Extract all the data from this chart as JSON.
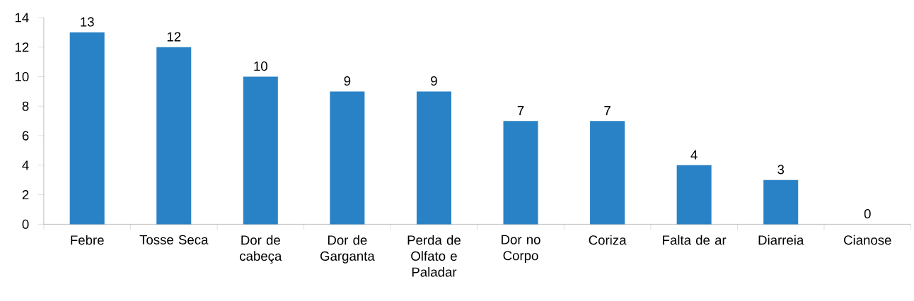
{
  "chart_data": {
    "type": "bar",
    "categories": [
      "Febre",
      "Tosse Seca",
      "Dor de cabeça",
      "Dor de Garganta",
      "Perda de Olfato e Paladar",
      "Dor no Corpo",
      "Coriza",
      "Falta de ar",
      "Diarreia",
      "Cianose"
    ],
    "values": [
      13,
      12,
      10,
      9,
      9,
      7,
      7,
      4,
      3,
      0
    ],
    "color": "#2a82c6",
    "ylim": [
      0,
      14
    ],
    "yticks": [
      0,
      2,
      4,
      6,
      8,
      10,
      12,
      14
    ],
    "data_labels": true
  }
}
